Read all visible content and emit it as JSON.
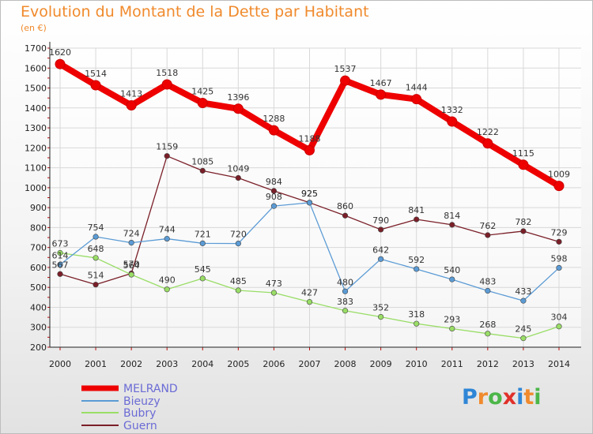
{
  "chart_data": {
    "type": "line",
    "title": "Evolution du Montant de la Dette par Habitant",
    "subtitle": "(en €)",
    "x": [
      "2000",
      "2001",
      "2002",
      "2003",
      "2004",
      "2005",
      "2006",
      "2007",
      "2008",
      "2009",
      "2010",
      "2011",
      "2012",
      "2013",
      "2014"
    ],
    "ylim": [
      200,
      1700
    ],
    "yticks": [
      200,
      300,
      400,
      500,
      600,
      700,
      800,
      900,
      1000,
      1100,
      1200,
      1300,
      1400,
      1500,
      1600,
      1700
    ],
    "grid": true,
    "legend": "bottom-left",
    "series": [
      {
        "name": "MELRAND",
        "color": "#ee0000",
        "values": [
          1620,
          1514,
          1413,
          1518,
          1425,
          1396,
          1288,
          1188,
          1537,
          1467,
          1444,
          1332,
          1222,
          1115,
          1009
        ]
      },
      {
        "name": "Bieuzy",
        "color": "#5b9bd5",
        "values": [
          614,
          754,
          724,
          744,
          721,
          720,
          908,
          925,
          480,
          642,
          592,
          540,
          483,
          433,
          598
        ]
      },
      {
        "name": "Bubry",
        "color": "#99dd66",
        "values": [
          673,
          648,
          564,
          490,
          545,
          485,
          473,
          427,
          383,
          352,
          318,
          293,
          268,
          245,
          304
        ]
      },
      {
        "name": "Guern",
        "color": "#7a1f28",
        "values": [
          567,
          514,
          570,
          1159,
          1085,
          1049,
          984,
          925,
          860,
          790,
          841,
          814,
          762,
          782,
          729
        ]
      }
    ]
  },
  "logo": {
    "letters": [
      "P",
      "r",
      "o",
      "x",
      "i",
      "t",
      "i"
    ],
    "colors": [
      "#2f86d6",
      "#f08a2c",
      "#4cb648",
      "#e0302a",
      "#2f86d6",
      "#f08a2c",
      "#4cb648"
    ]
  }
}
